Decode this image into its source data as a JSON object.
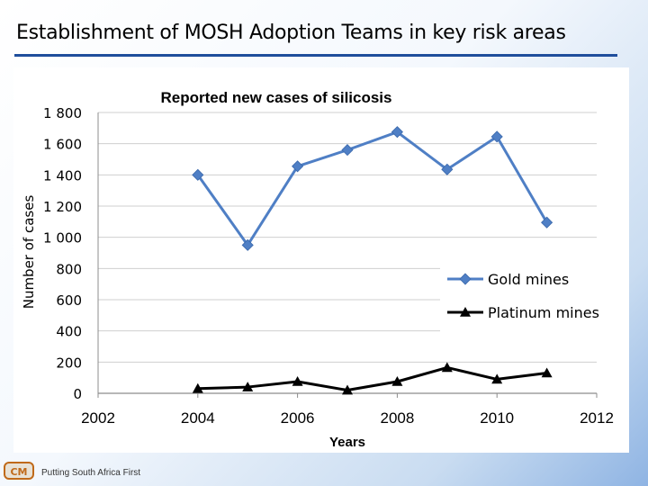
{
  "slide": {
    "title": "Establishment of MOSH Adoption Teams in key risk areas",
    "footer_text": "Putting South Africa First",
    "logo_label": "CM",
    "title_rule_color": "#1f4e9c"
  },
  "chart_data": {
    "type": "line",
    "title": "Reported new cases of silicosis",
    "xlabel": "Years",
    "ylabel": "Number of cases",
    "xlim": [
      2002,
      2012
    ],
    "ylim": [
      0,
      1800
    ],
    "x_ticks": [
      2002,
      2004,
      2006,
      2008,
      2010,
      2012
    ],
    "x_tick_labels": [
      "2002",
      "2004",
      "2006",
      "2008",
      "2010",
      "2012"
    ],
    "y_ticks": [
      0,
      200,
      400,
      600,
      800,
      1000,
      1200,
      1400,
      1600,
      1800
    ],
    "y_tick_labels": [
      "0",
      "200",
      "400",
      "600",
      "800",
      "1 000",
      "1 200",
      "1 400",
      "1 600",
      "1 800"
    ],
    "grid": true,
    "legend_position": "right",
    "series": [
      {
        "name": "Gold mines",
        "color": "#4f7fc5",
        "marker": "diamond",
        "x": [
          2004,
          2005,
          2006,
          2007,
          2008,
          2009,
          2010,
          2011
        ],
        "values": [
          1400,
          950,
          1455,
          1560,
          1675,
          1435,
          1645,
          1095
        ]
      },
      {
        "name": "Platinum mines",
        "color": "#000000",
        "marker": "triangle",
        "x": [
          2004,
          2005,
          2006,
          2007,
          2008,
          2009,
          2010,
          2011
        ],
        "values": [
          30,
          40,
          75,
          20,
          75,
          165,
          90,
          130
        ]
      }
    ]
  }
}
